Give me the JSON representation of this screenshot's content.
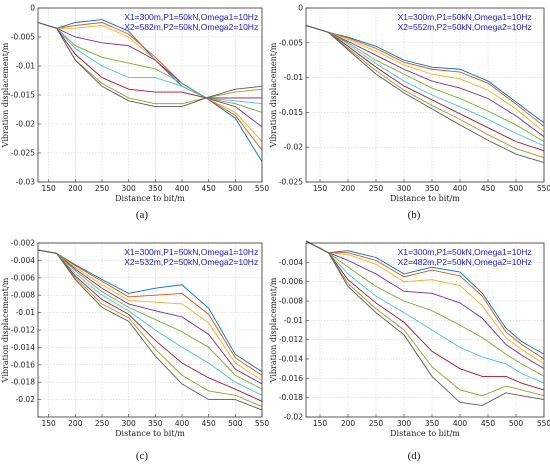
{
  "chart_data": [
    {
      "type": "line",
      "caption": "(a)",
      "xlabel": "Distance to bit/m",
      "ylabel": "Vibration displacement/m",
      "xlim": [
        130,
        550
      ],
      "ylim": [
        -0.03,
        0
      ],
      "xticks": [
        150,
        200,
        250,
        300,
        350,
        400,
        450,
        500,
        550
      ],
      "yticks": [
        -0.03,
        -0.025,
        -0.02,
        -0.015,
        -0.01,
        -0.005,
        0
      ],
      "ytick_labels": [
        "-0.03",
        "-0.025",
        "-0.02",
        "-0.015",
        "-0.01",
        "-0.005",
        "0"
      ],
      "grid": true,
      "annotation": [
        "X1=300m,P1=50kN,Omega1=10Hz",
        "X2=582m,P2=50kN,Omega2=10Hz"
      ],
      "x": [
        130,
        165,
        200,
        250,
        300,
        350,
        400,
        445,
        500,
        550
      ],
      "series": [
        {
          "color": "#0072bd",
          "values": [
            -0.0025,
            -0.0035,
            -0.0025,
            -0.002,
            -0.004,
            -0.009,
            -0.0135,
            -0.0155,
            -0.019,
            -0.0265
          ]
        },
        {
          "color": "#d95319",
          "values": [
            -0.0025,
            -0.0035,
            -0.003,
            -0.0025,
            -0.0045,
            -0.0085,
            -0.013,
            -0.0155,
            -0.0185,
            -0.0245
          ]
        },
        {
          "color": "#edb120",
          "values": [
            -0.0025,
            -0.0035,
            -0.0035,
            -0.003,
            -0.005,
            -0.009,
            -0.013,
            -0.0155,
            -0.018,
            -0.023
          ]
        },
        {
          "color": "#7e2f8e",
          "values": [
            -0.0025,
            -0.0035,
            -0.005,
            -0.006,
            -0.0065,
            -0.009,
            -0.013,
            -0.0155,
            -0.017,
            -0.0205
          ]
        },
        {
          "color": "#77ac30",
          "values": [
            -0.0025,
            -0.0035,
            -0.0065,
            -0.0085,
            -0.0095,
            -0.0105,
            -0.013,
            -0.0155,
            -0.0165,
            -0.018
          ]
        },
        {
          "color": "#4dbeee",
          "values": [
            -0.0025,
            -0.0035,
            -0.007,
            -0.01,
            -0.012,
            -0.012,
            -0.0135,
            -0.0155,
            -0.016,
            -0.0165
          ]
        },
        {
          "color": "#a2142f",
          "values": [
            -0.0025,
            -0.0035,
            -0.008,
            -0.012,
            -0.014,
            -0.0145,
            -0.0145,
            -0.0155,
            -0.0155,
            -0.0155
          ]
        },
        {
          "color": "#9b9b2a",
          "values": [
            -0.0025,
            -0.0035,
            -0.009,
            -0.013,
            -0.0155,
            -0.0165,
            -0.0165,
            -0.0155,
            -0.0145,
            -0.014
          ]
        },
        {
          "color": "#5a5a5a",
          "values": [
            -0.0025,
            -0.0035,
            -0.009,
            -0.0135,
            -0.016,
            -0.017,
            -0.017,
            -0.0155,
            -0.014,
            -0.0135
          ]
        }
      ]
    },
    {
      "type": "line",
      "caption": "(b)",
      "xlabel": "Distance to bit/m",
      "ylabel": "Vibration displacement/m",
      "xlim": [
        125,
        550
      ],
      "ylim": [
        -0.025,
        0
      ],
      "xticks": [
        150,
        200,
        250,
        300,
        350,
        400,
        450,
        500,
        550
      ],
      "yticks": [
        -0.025,
        -0.02,
        -0.015,
        -0.01,
        -0.005,
        0
      ],
      "ytick_labels": [
        "-0.025",
        "-0.02",
        "-0.015",
        "-0.01",
        "-0.005",
        "0"
      ],
      "grid": true,
      "annotation": [
        "X1=300m,P1=50kN,Omega1=10Hz",
        "X2=552m,P2=50kN,Omega2=10Hz"
      ],
      "x": [
        125,
        165,
        200,
        250,
        300,
        350,
        400,
        450,
        500,
        550
      ],
      "series": [
        {
          "color": "#0072bd",
          "values": [
            -0.0025,
            -0.0035,
            -0.0042,
            -0.0055,
            -0.0075,
            -0.0085,
            -0.0088,
            -0.0105,
            -0.0135,
            -0.0165
          ]
        },
        {
          "color": "#d95319",
          "values": [
            -0.0025,
            -0.0035,
            -0.0043,
            -0.0058,
            -0.0078,
            -0.0088,
            -0.0092,
            -0.0108,
            -0.0138,
            -0.017
          ]
        },
        {
          "color": "#edb120",
          "values": [
            -0.0025,
            -0.0035,
            -0.0045,
            -0.0062,
            -0.0082,
            -0.0095,
            -0.0102,
            -0.0118,
            -0.0145,
            -0.0178
          ]
        },
        {
          "color": "#7e2f8e",
          "values": [
            -0.0025,
            -0.0035,
            -0.0048,
            -0.0068,
            -0.0088,
            -0.0105,
            -0.0115,
            -0.013,
            -0.0155,
            -0.0185
          ]
        },
        {
          "color": "#77ac30",
          "values": [
            -0.0025,
            -0.0035,
            -0.005,
            -0.0075,
            -0.0095,
            -0.0115,
            -0.013,
            -0.0148,
            -0.0168,
            -0.0192
          ]
        },
        {
          "color": "#4dbeee",
          "values": [
            -0.0025,
            -0.0035,
            -0.0052,
            -0.008,
            -0.0105,
            -0.0125,
            -0.0142,
            -0.016,
            -0.018,
            -0.0198
          ]
        },
        {
          "color": "#a2142f",
          "values": [
            -0.0025,
            -0.0035,
            -0.0055,
            -0.0085,
            -0.0112,
            -0.0132,
            -0.0152,
            -0.0172,
            -0.0192,
            -0.0205
          ]
        },
        {
          "color": "#9b9b2a",
          "values": [
            -0.0025,
            -0.0035,
            -0.0058,
            -0.009,
            -0.0118,
            -0.014,
            -0.016,
            -0.0182,
            -0.0202,
            -0.0215
          ]
        },
        {
          "color": "#5a5a5a",
          "values": [
            -0.0025,
            -0.0035,
            -0.006,
            -0.0095,
            -0.0122,
            -0.0145,
            -0.0168,
            -0.019,
            -0.021,
            -0.0222
          ]
        }
      ]
    },
    {
      "type": "line",
      "caption": "(c)",
      "xlabel": "Distance to bit/m",
      "ylabel": "Vibration displacement/m",
      "xlim": [
        130,
        550
      ],
      "ylim": [
        -0.022,
        -0.002
      ],
      "xticks": [
        150,
        200,
        250,
        300,
        350,
        400,
        450,
        500,
        550
      ],
      "yticks": [
        -0.022,
        -0.02,
        -0.018,
        -0.016,
        -0.014,
        -0.012,
        -0.01,
        -0.008,
        -0.006,
        -0.004,
        -0.002
      ],
      "ytick_labels": [
        "",
        "-0.02",
        "-0.018",
        "-0.016",
        "-0.014",
        "-0.012",
        "-0.01",
        "-0.008",
        "-0.006",
        "-0.004",
        "-0.002"
      ],
      "grid": true,
      "annotation": [
        "X1=300m,P1=50kN,Omega1=10Hz",
        "X2=532m,P2=50kN,Omega2=10Hz"
      ],
      "x": [
        130,
        165,
        200,
        250,
        300,
        350,
        400,
        450,
        500,
        550
      ],
      "series": [
        {
          "color": "#0072bd",
          "values": [
            -0.0028,
            -0.0032,
            -0.0045,
            -0.0062,
            -0.0078,
            -0.0072,
            -0.0068,
            -0.0095,
            -0.0148,
            -0.0168
          ]
        },
        {
          "color": "#d95319",
          "values": [
            -0.0028,
            -0.0032,
            -0.0046,
            -0.0064,
            -0.0082,
            -0.008,
            -0.0078,
            -0.0102,
            -0.0152,
            -0.0172
          ]
        },
        {
          "color": "#edb120",
          "values": [
            -0.0028,
            -0.0032,
            -0.0048,
            -0.0068,
            -0.0086,
            -0.0088,
            -0.009,
            -0.0112,
            -0.0158,
            -0.0178
          ]
        },
        {
          "color": "#7e2f8e",
          "values": [
            -0.0028,
            -0.0032,
            -0.005,
            -0.0072,
            -0.009,
            -0.0098,
            -0.0105,
            -0.0125,
            -0.0165,
            -0.0182
          ]
        },
        {
          "color": "#77ac30",
          "values": [
            -0.0028,
            -0.0032,
            -0.0052,
            -0.0076,
            -0.0094,
            -0.0108,
            -0.0122,
            -0.014,
            -0.0172,
            -0.0188
          ]
        },
        {
          "color": "#4dbeee",
          "values": [
            -0.0028,
            -0.0032,
            -0.0055,
            -0.008,
            -0.0098,
            -0.012,
            -0.014,
            -0.0158,
            -0.018,
            -0.0195
          ]
        },
        {
          "color": "#a2142f",
          "values": [
            -0.0028,
            -0.0032,
            -0.0058,
            -0.0085,
            -0.0102,
            -0.0132,
            -0.0158,
            -0.0175,
            -0.0188,
            -0.0202
          ]
        },
        {
          "color": "#9b9b2a",
          "values": [
            -0.0028,
            -0.0032,
            -0.006,
            -0.009,
            -0.0106,
            -0.0142,
            -0.0172,
            -0.019,
            -0.0195,
            -0.0208
          ]
        },
        {
          "color": "#5a5a5a",
          "values": [
            -0.0028,
            -0.0032,
            -0.0062,
            -0.0094,
            -0.011,
            -0.015,
            -0.0182,
            -0.02,
            -0.02,
            -0.0212
          ]
        }
      ]
    },
    {
      "type": "line",
      "caption": "(d)",
      "xlabel": "Distance to bit/m",
      "ylabel": "Vibration displacement/m",
      "xlim": [
        125,
        550
      ],
      "ylim": [
        -0.02,
        -0.002
      ],
      "xticks": [
        150,
        200,
        250,
        300,
        350,
        400,
        450,
        500,
        550
      ],
      "yticks": [
        -0.02,
        -0.018,
        -0.016,
        -0.014,
        -0.012,
        -0.01,
        -0.008,
        -0.006,
        -0.004,
        -0.002
      ],
      "ytick_labels": [
        "-0.02",
        "-0.018",
        "-0.016",
        "-0.014",
        "-0.012",
        "-0.01",
        "-0.008",
        "-0.006",
        "-0.004",
        ""
      ],
      "grid": true,
      "annotation": [
        "X1=300m,P1=50kN,Omega1=10Hz",
        "X2=482m,P2=50kN,Omega2=10Hz"
      ],
      "x": [
        125,
        165,
        200,
        250,
        300,
        350,
        400,
        440,
        482,
        510,
        550
      ],
      "series": [
        {
          "color": "#0072bd",
          "values": [
            -0.0018,
            -0.003,
            -0.0028,
            -0.0035,
            -0.0052,
            -0.0045,
            -0.005,
            -0.0072,
            -0.0108,
            -0.0122,
            -0.0135
          ]
        },
        {
          "color": "#d95319",
          "values": [
            -0.0018,
            -0.003,
            -0.003,
            -0.0038,
            -0.0055,
            -0.0048,
            -0.0054,
            -0.0075,
            -0.0112,
            -0.0125,
            -0.014
          ]
        },
        {
          "color": "#edb120",
          "values": [
            -0.0018,
            -0.003,
            -0.0032,
            -0.0042,
            -0.006,
            -0.0058,
            -0.0064,
            -0.0085,
            -0.0118,
            -0.013,
            -0.0145
          ]
        },
        {
          "color": "#7e2f8e",
          "values": [
            -0.0018,
            -0.003,
            -0.0038,
            -0.0052,
            -0.007,
            -0.0072,
            -0.0082,
            -0.0098,
            -0.0125,
            -0.0136,
            -0.015
          ]
        },
        {
          "color": "#77ac30",
          "values": [
            -0.0018,
            -0.003,
            -0.0045,
            -0.0065,
            -0.008,
            -0.009,
            -0.0105,
            -0.0118,
            -0.0135,
            -0.0145,
            -0.0158
          ]
        },
        {
          "color": "#4dbeee",
          "values": [
            -0.0018,
            -0.003,
            -0.0052,
            -0.0075,
            -0.0092,
            -0.011,
            -0.0128,
            -0.0138,
            -0.0145,
            -0.0155,
            -0.0165
          ]
        },
        {
          "color": "#a2142f",
          "values": [
            -0.0018,
            -0.003,
            -0.0058,
            -0.0082,
            -0.0102,
            -0.0132,
            -0.015,
            -0.0158,
            -0.0158,
            -0.0165,
            -0.0172
          ]
        },
        {
          "color": "#9b9b2a",
          "values": [
            -0.0018,
            -0.003,
            -0.0062,
            -0.0088,
            -0.011,
            -0.0148,
            -0.0172,
            -0.0178,
            -0.0168,
            -0.0172,
            -0.0178
          ]
        },
        {
          "color": "#5a5a5a",
          "values": [
            -0.0018,
            -0.003,
            -0.0065,
            -0.0092,
            -0.0115,
            -0.0158,
            -0.0185,
            -0.0188,
            -0.0175,
            -0.0178,
            -0.0182
          ]
        }
      ]
    }
  ]
}
